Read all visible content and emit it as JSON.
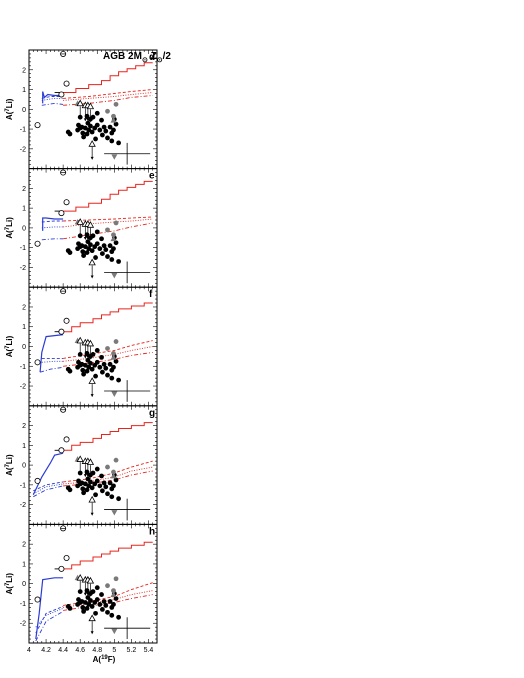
{
  "chart_data": {
    "type": "scatter",
    "title": "AGB 2M_sun Z_sun/2",
    "xlabel": "A(19F)",
    "ylabel": "A(7Li)",
    "xlim": [
      4.0,
      5.5
    ],
    "ylim": [
      -3,
      3
    ],
    "x_ticks": [
      "4",
      "4.2",
      "4.4",
      "4.6",
      "4.8",
      "5",
      "5.2",
      "5.4"
    ],
    "y_ticks": [
      "-2",
      "-1",
      "0",
      "1",
      "2"
    ],
    "panel_labels": [
      "d",
      "e",
      "f",
      "g",
      "h"
    ],
    "colors": {
      "observed": "#000000",
      "upper_limit": "#000000",
      "model_red": "#e8241c",
      "model_blue": "#2b3cd6",
      "grey": "#7a7a7a"
    },
    "observations": {
      "filled_circles": [
        [
          4.46,
          -1.15
        ],
        [
          4.48,
          -1.25
        ],
        [
          4.57,
          -1.05
        ],
        [
          4.58,
          -0.8
        ],
        [
          4.6,
          -0.95
        ],
        [
          4.62,
          -0.9
        ],
        [
          4.63,
          -1.2
        ],
        [
          4.64,
          -1.4
        ],
        [
          4.66,
          -0.95
        ],
        [
          4.68,
          -1.25
        ],
        [
          4.69,
          -0.7
        ],
        [
          4.7,
          -1.05
        ],
        [
          4.72,
          -0.85
        ],
        [
          4.74,
          -1.15
        ],
        [
          4.75,
          -0.4
        ],
        [
          4.77,
          -0.95
        ],
        [
          4.78,
          -1.5
        ],
        [
          4.8,
          -0.8
        ],
        [
          4.83,
          -1.05
        ],
        [
          4.86,
          -1.3
        ],
        [
          4.88,
          -0.9
        ],
        [
          4.9,
          -1.1
        ],
        [
          4.92,
          -1.45
        ],
        [
          4.95,
          -0.9
        ],
        [
          4.97,
          -1.2
        ],
        [
          4.99,
          -1.05
        ],
        [
          5.02,
          -0.75
        ],
        [
          5.05,
          -1.7
        ],
        [
          4.6,
          -0.4
        ],
        [
          4.68,
          -0.35
        ],
        [
          4.72,
          -0.5
        ],
        [
          4.8,
          -0.2
        ],
        [
          4.85,
          -0.55
        ],
        [
          4.97,
          -1.6
        ],
        [
          5.0,
          -0.5
        ]
      ],
      "open_circles": [
        [
          4.1,
          -0.8
        ],
        [
          4.38,
          0.75
        ],
        [
          4.44,
          1.3
        ]
      ],
      "open_circles_upper_limit": [
        [
          4.4,
          2.8
        ]
      ],
      "open_triangles_upper_limit": [
        [
          4.6,
          0.3
        ],
        [
          4.66,
          0.2
        ],
        [
          4.69,
          0.2
        ],
        [
          4.72,
          0.15
        ],
        [
          4.74,
          -1.75
        ]
      ],
      "grey_filled_circles": [
        [
          4.92,
          -0.1
        ],
        [
          5.02,
          0.25
        ],
        [
          4.99,
          -0.35
        ]
      ],
      "grey_filled_triangles": [
        [
          4.57,
          0.3
        ],
        [
          4.99,
          -0.55
        ]
      ],
      "grey_inverted_triangles": [
        [
          5.0,
          -2.4
        ]
      ],
      "error_bar": {
        "x": 5.15,
        "y": -2.25,
        "xerr_low": 0.27,
        "xerr_high": 0.27,
        "yerr": 0.55
      }
    },
    "series": [
      {
        "panel": "d",
        "red_step": [
          [
            4.4,
            0.85
          ],
          [
            4.55,
            0.85
          ],
          [
            4.55,
            1.05
          ],
          [
            4.7,
            1.05
          ],
          [
            4.7,
            1.25
          ],
          [
            4.85,
            1.25
          ],
          [
            4.85,
            1.45
          ],
          [
            4.95,
            1.45
          ],
          [
            4.95,
            1.7
          ],
          [
            5.05,
            1.7
          ],
          [
            5.05,
            1.9
          ],
          [
            5.15,
            1.9
          ],
          [
            5.15,
            2.05
          ],
          [
            5.25,
            2.05
          ],
          [
            5.25,
            2.2
          ],
          [
            5.35,
            2.2
          ],
          [
            5.35,
            2.35
          ],
          [
            5.45,
            2.35
          ]
        ],
        "red_dashed": [
          [
            4.4,
            0.55
          ],
          [
            4.7,
            0.65
          ],
          [
            5.0,
            0.8
          ],
          [
            5.2,
            0.9
          ],
          [
            5.45,
            1.0
          ]
        ],
        "red_dotted": [
          [
            4.4,
            0.45
          ],
          [
            4.7,
            0.55
          ],
          [
            5.0,
            0.65
          ],
          [
            5.2,
            0.75
          ],
          [
            5.45,
            0.85
          ]
        ],
        "red_dashdot": [
          [
            4.4,
            0.2
          ],
          [
            4.7,
            0.3
          ],
          [
            5.0,
            0.45
          ],
          [
            5.2,
            0.6
          ],
          [
            5.45,
            0.7
          ]
        ],
        "blue_solid": [
          [
            4.16,
            0.3
          ],
          [
            4.16,
            0.9
          ],
          [
            4.18,
            0.6
          ],
          [
            4.22,
            0.75
          ],
          [
            4.3,
            0.7
          ],
          [
            4.4,
            0.7
          ]
        ],
        "blue_dashed": [
          [
            4.15,
            0.55
          ],
          [
            4.25,
            0.65
          ],
          [
            4.4,
            0.65
          ]
        ],
        "blue_dotted": [
          [
            4.15,
            0.45
          ],
          [
            4.3,
            0.55
          ],
          [
            4.4,
            0.55
          ]
        ],
        "blue_dashdot": [
          [
            4.15,
            0.2
          ],
          [
            4.3,
            0.3
          ],
          [
            4.4,
            0.25
          ]
        ]
      },
      {
        "panel": "e",
        "red_step": [
          [
            4.4,
            0.85
          ],
          [
            4.55,
            0.85
          ],
          [
            4.55,
            1.05
          ],
          [
            4.7,
            1.05
          ],
          [
            4.7,
            1.25
          ],
          [
            4.85,
            1.25
          ],
          [
            4.85,
            1.45
          ],
          [
            4.95,
            1.45
          ],
          [
            4.95,
            1.7
          ],
          [
            5.05,
            1.7
          ],
          [
            5.05,
            1.9
          ],
          [
            5.15,
            1.9
          ],
          [
            5.15,
            2.05
          ],
          [
            5.25,
            2.05
          ],
          [
            5.25,
            2.2
          ],
          [
            5.35,
            2.2
          ],
          [
            5.35,
            2.35
          ],
          [
            5.45,
            2.35
          ]
        ],
        "red_dashed": [
          [
            4.4,
            0.35
          ],
          [
            4.7,
            0.4
          ],
          [
            5.0,
            0.45
          ],
          [
            5.2,
            0.5
          ],
          [
            5.45,
            0.55
          ]
        ],
        "red_dotted": [
          [
            4.4,
            0.05
          ],
          [
            4.7,
            0.2
          ],
          [
            5.0,
            0.3
          ],
          [
            5.2,
            0.35
          ],
          [
            5.45,
            0.45
          ]
        ],
        "red_dashdot": [
          [
            4.4,
            -0.55
          ],
          [
            4.7,
            -0.35
          ],
          [
            5.0,
            -0.15
          ],
          [
            5.2,
            0.05
          ],
          [
            5.45,
            0.25
          ]
        ],
        "blue_solid": [
          [
            4.16,
            -0.15
          ],
          [
            4.16,
            0.5
          ],
          [
            4.2,
            0.5
          ],
          [
            4.3,
            0.45
          ],
          [
            4.4,
            0.45
          ]
        ],
        "blue_dashed": [
          [
            4.15,
            0.3
          ],
          [
            4.3,
            0.35
          ],
          [
            4.4,
            0.35
          ]
        ],
        "blue_dotted": [
          [
            4.15,
            0.0
          ],
          [
            4.3,
            0.05
          ],
          [
            4.4,
            0.05
          ]
        ],
        "blue_dashdot": [
          [
            4.15,
            -0.6
          ],
          [
            4.3,
            -0.55
          ],
          [
            4.4,
            -0.55
          ]
        ]
      },
      {
        "panel": "f",
        "red_step": [
          [
            4.4,
            0.75
          ],
          [
            4.5,
            0.75
          ],
          [
            4.5,
            1.0
          ],
          [
            4.6,
            1.0
          ],
          [
            4.6,
            1.2
          ],
          [
            4.75,
            1.2
          ],
          [
            4.75,
            1.4
          ],
          [
            4.85,
            1.4
          ],
          [
            4.85,
            1.6
          ],
          [
            4.95,
            1.6
          ],
          [
            4.95,
            1.75
          ],
          [
            5.05,
            1.75
          ],
          [
            5.05,
            1.9
          ],
          [
            5.2,
            1.9
          ],
          [
            5.2,
            2.05
          ],
          [
            5.35,
            2.05
          ],
          [
            5.35,
            2.2
          ],
          [
            5.45,
            2.2
          ]
        ],
        "red_dashed": [
          [
            4.4,
            -0.6
          ],
          [
            4.7,
            -0.4
          ],
          [
            5.0,
            -0.2
          ],
          [
            5.2,
            0.05
          ],
          [
            5.45,
            0.3
          ]
        ],
        "red_dotted": [
          [
            4.4,
            -0.75
          ],
          [
            4.7,
            -0.6
          ],
          [
            5.0,
            -0.4
          ],
          [
            5.2,
            -0.2
          ],
          [
            5.45,
            0.0
          ]
        ],
        "red_dashdot": [
          [
            4.4,
            -1.0
          ],
          [
            4.7,
            -0.85
          ],
          [
            5.0,
            -0.65
          ],
          [
            5.2,
            -0.45
          ],
          [
            5.45,
            -0.3
          ]
        ],
        "blue_solid": [
          [
            4.13,
            -1.3
          ],
          [
            4.15,
            -0.3
          ],
          [
            4.2,
            0.5
          ],
          [
            4.3,
            0.55
          ],
          [
            4.4,
            0.6
          ]
        ],
        "blue_dashed": [
          [
            4.15,
            -0.6
          ],
          [
            4.3,
            -0.6
          ],
          [
            4.4,
            -0.6
          ]
        ],
        "blue_dotted": [
          [
            4.15,
            -0.8
          ],
          [
            4.3,
            -0.75
          ],
          [
            4.4,
            -0.75
          ]
        ],
        "blue_dashdot": [
          [
            4.13,
            -1.3
          ],
          [
            4.25,
            -1.15
          ],
          [
            4.4,
            -1.05
          ]
        ]
      },
      {
        "panel": "g",
        "red_step": [
          [
            4.4,
            0.75
          ],
          [
            4.5,
            0.75
          ],
          [
            4.5,
            1.0
          ],
          [
            4.6,
            1.0
          ],
          [
            4.6,
            1.15
          ],
          [
            4.75,
            1.15
          ],
          [
            4.75,
            1.35
          ],
          [
            4.85,
            1.35
          ],
          [
            4.85,
            1.55
          ],
          [
            4.95,
            1.55
          ],
          [
            4.95,
            1.7
          ],
          [
            5.05,
            1.7
          ],
          [
            5.05,
            1.85
          ],
          [
            5.2,
            1.85
          ],
          [
            5.2,
            2.0
          ],
          [
            5.35,
            2.0
          ],
          [
            5.35,
            2.15
          ],
          [
            5.45,
            2.15
          ]
        ],
        "red_dashed": [
          [
            4.4,
            -0.85
          ],
          [
            4.7,
            -0.7
          ],
          [
            5.0,
            -0.4
          ],
          [
            5.2,
            -0.1
          ],
          [
            5.45,
            0.2
          ]
        ],
        "red_dotted": [
          [
            4.4,
            -0.95
          ],
          [
            4.7,
            -0.85
          ],
          [
            5.0,
            -0.6
          ],
          [
            5.2,
            -0.3
          ],
          [
            5.45,
            -0.1
          ]
        ],
        "red_dashdot": [
          [
            4.4,
            -1.05
          ],
          [
            4.7,
            -0.95
          ],
          [
            5.0,
            -0.75
          ],
          [
            5.2,
            -0.5
          ],
          [
            5.45,
            -0.3
          ]
        ],
        "blue_solid": [
          [
            4.05,
            -1.5
          ],
          [
            4.15,
            -0.6
          ],
          [
            4.25,
            0.1
          ],
          [
            4.3,
            0.5
          ],
          [
            4.4,
            0.6
          ]
        ],
        "blue_dashed": [
          [
            4.05,
            -1.3
          ],
          [
            4.2,
            -1.0
          ],
          [
            4.4,
            -0.85
          ]
        ],
        "blue_dotted": [
          [
            4.05,
            -1.45
          ],
          [
            4.2,
            -1.1
          ],
          [
            4.4,
            -0.95
          ]
        ],
        "blue_dashdot": [
          [
            4.05,
            -1.6
          ],
          [
            4.2,
            -1.25
          ],
          [
            4.4,
            -1.05
          ]
        ]
      },
      {
        "panel": "h",
        "red_step": [
          [
            4.4,
            0.75
          ],
          [
            4.5,
            0.75
          ],
          [
            4.5,
            0.95
          ],
          [
            4.6,
            0.95
          ],
          [
            4.6,
            1.15
          ],
          [
            4.75,
            1.15
          ],
          [
            4.75,
            1.35
          ],
          [
            4.85,
            1.35
          ],
          [
            4.85,
            1.5
          ],
          [
            4.95,
            1.5
          ],
          [
            4.95,
            1.65
          ],
          [
            5.05,
            1.65
          ],
          [
            5.05,
            1.8
          ],
          [
            5.2,
            1.8
          ],
          [
            5.2,
            1.95
          ],
          [
            5.35,
            1.95
          ],
          [
            5.35,
            2.1
          ],
          [
            5.45,
            2.1
          ]
        ],
        "red_dashed": [
          [
            4.4,
            -1.1
          ],
          [
            4.7,
            -0.9
          ],
          [
            5.0,
            -0.65
          ],
          [
            5.2,
            -0.3
          ],
          [
            5.45,
            0.05
          ]
        ],
        "red_dotted": [
          [
            4.4,
            -1.2
          ],
          [
            4.7,
            -1.0
          ],
          [
            5.0,
            -0.8
          ],
          [
            5.2,
            -0.55
          ],
          [
            5.45,
            -0.35
          ]
        ],
        "red_dashdot": [
          [
            4.4,
            -1.35
          ],
          [
            4.7,
            -1.15
          ],
          [
            5.0,
            -0.95
          ],
          [
            5.2,
            -0.75
          ],
          [
            5.45,
            -0.55
          ]
        ],
        "blue_solid": [
          [
            4.08,
            -2.8
          ],
          [
            4.12,
            -1.5
          ],
          [
            4.16,
            0.2
          ],
          [
            4.3,
            0.3
          ],
          [
            4.4,
            0.3
          ]
        ],
        "blue_dashed": [
          [
            4.08,
            -2.5
          ],
          [
            4.2,
            -1.5
          ],
          [
            4.4,
            -1.15
          ]
        ],
        "blue_dotted": [
          [
            4.08,
            -2.2
          ],
          [
            4.2,
            -1.6
          ],
          [
            4.4,
            -1.25
          ]
        ],
        "blue_dashdot": [
          [
            4.08,
            -2.9
          ],
          [
            4.2,
            -1.9
          ],
          [
            4.4,
            -1.4
          ]
        ]
      }
    ]
  }
}
